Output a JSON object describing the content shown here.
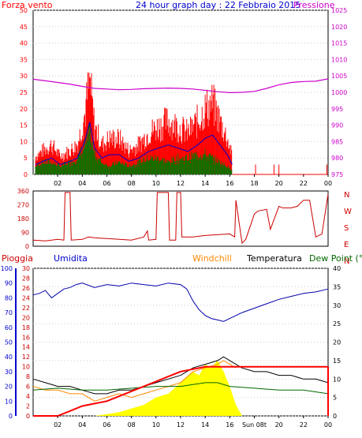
{
  "title": "24 hour graph day : 22 Febbraio 2015",
  "hour_ticks": [
    "02",
    "04",
    "06",
    "08",
    "10",
    "12",
    "14",
    "16",
    "18",
    "20",
    "22",
    "00"
  ],
  "colors": {
    "wind": "#ff0000",
    "gust_line": "#0000cc",
    "avg_wind": "#007700",
    "pressure": "#cc00cc",
    "direction": "#cc0000",
    "rain": "#ff0000",
    "humidity": "#0000aa",
    "windchill": "#ff8800",
    "temperature": "#000000",
    "dewpoint": "#006600",
    "solar": "#ffff00",
    "axis_left_wind": "#ff0000",
    "axis_humidity": "#0000cc",
    "axis_rain": "#cc0000",
    "frame": "#000000"
  },
  "chart_data": [
    {
      "type": "line",
      "name": "wind-pressure",
      "left_axis_label": "Forza vento",
      "right_axis_label": "Pressione",
      "left_ticks": [
        0,
        5,
        10,
        15,
        20,
        25,
        30,
        35,
        40,
        45,
        50
      ],
      "right_ticks": [
        975,
        980,
        985,
        990,
        995,
        1000,
        1005,
        1010,
        1015,
        1020,
        1025
      ],
      "ylim_left": [
        0,
        50
      ],
      "ylim_right": [
        975,
        1025
      ],
      "xlim_hours": [
        0,
        24
      ],
      "series": [
        {
          "key": "pressure",
          "x": [
            0,
            1,
            2,
            3,
            4,
            5,
            6,
            7,
            8,
            9,
            10,
            11,
            12,
            13,
            14,
            15,
            16,
            17,
            18,
            19,
            20,
            21,
            22,
            23,
            24
          ],
          "y": [
            1004,
            1003.5,
            1003,
            1002.5,
            1001.8,
            1001.2,
            1001,
            1000.8,
            1000.9,
            1001.1,
            1001.2,
            1001.3,
            1001.2,
            1001,
            1000.6,
            1000.2,
            999.9,
            1000,
            1000.3,
            1001.2,
            1002.3,
            1003,
            1003.3,
            1003.4,
            1004.1
          ]
        },
        {
          "key": "gust_line",
          "x": [
            0.2,
            0.8,
            1.5,
            2.2,
            3,
            3.6,
            4.2,
            4.6,
            5,
            5.6,
            6.2,
            7,
            7.8,
            8.6,
            9.4,
            10.2,
            11,
            11.8,
            12.6,
            13.4,
            14,
            14.6,
            15.2,
            15.8,
            16.2
          ],
          "y": [
            3,
            4,
            5,
            3,
            4,
            5,
            10,
            16,
            8,
            5,
            6,
            6,
            4,
            5,
            7,
            8,
            9,
            8,
            7,
            9,
            11,
            12,
            9,
            6,
            3
          ]
        },
        {
          "key": "avg_wind",
          "x": [
            0.2,
            0.8,
            1.5,
            2.2,
            3,
            3.6,
            4.2,
            4.6,
            5,
            5.6,
            6.2,
            7,
            7.8,
            8.6,
            9.4,
            10.2,
            11,
            11.8,
            12.6,
            13.4,
            14,
            14.6,
            15.2,
            15.8,
            16.2
          ],
          "y": [
            2,
            3,
            3,
            2,
            3,
            4,
            7,
            10,
            5,
            3,
            2,
            3,
            2,
            3,
            4,
            4,
            3,
            4,
            4,
            5,
            5,
            4,
            3,
            2,
            1
          ]
        }
      ]
    },
    {
      "type": "line",
      "name": "wind-direction",
      "left_ticks": [
        0,
        90,
        180,
        270,
        360
      ],
      "right_labels": [
        "N",
        "W",
        "S",
        "E",
        "N"
      ],
      "ylim": [
        0,
        360
      ],
      "xlim_hours": [
        0,
        24
      ],
      "series": [
        {
          "key": "direction",
          "x": [
            0,
            1,
            2,
            2.5,
            2.6,
            3,
            3.1,
            4,
            4.5,
            5,
            6,
            7,
            8,
            9,
            9.3,
            9.4,
            10,
            10.1,
            11,
            11.1,
            11.6,
            11.7,
            12,
            12.1,
            13,
            14,
            15,
            16,
            16.4,
            16.5,
            17,
            17.3,
            18,
            18.3,
            19,
            19.3,
            20,
            20.3,
            21,
            21.5,
            22,
            22.5,
            23,
            23.5,
            24
          ],
          "y": [
            40,
            35,
            45,
            40,
            350,
            350,
            40,
            45,
            60,
            55,
            50,
            45,
            40,
            60,
            100,
            40,
            45,
            350,
            350,
            40,
            40,
            350,
            350,
            60,
            60,
            70,
            75,
            80,
            60,
            300,
            20,
            45,
            210,
            230,
            240,
            110,
            260,
            250,
            250,
            260,
            300,
            300,
            60,
            80,
            340
          ]
        }
      ]
    },
    {
      "type": "line",
      "name": "temperature-humidity-rain",
      "rain_axis_label": "Pioggia",
      "humidity_axis_label": "Umidita",
      "windchill_label": "Windchill",
      "temperature_label": "Temperatura",
      "dewpoint_label": "Dew Point (°C",
      "humidity_ticks": [
        0,
        10,
        20,
        30,
        40,
        50,
        60,
        70,
        80,
        90,
        100
      ],
      "rain_ticks": [
        0,
        2,
        4,
        6,
        8,
        10,
        12,
        14,
        16,
        18,
        20,
        22,
        24,
        26,
        28,
        30
      ],
      "temp_ticks": [
        0,
        5,
        10,
        15,
        20,
        25,
        30,
        35,
        40
      ],
      "ylim_humidity": [
        0,
        100
      ],
      "ylim_rain": [
        0,
        30
      ],
      "ylim_temp": [
        0,
        40
      ],
      "xlim_hours": [
        0,
        24
      ],
      "x_ticks": [
        "02",
        "04",
        "06",
        "08",
        "10",
        "12",
        "14",
        "16",
        "Sun 08t",
        "20",
        "22",
        "00"
      ],
      "series": [
        {
          "key": "humidity",
          "x": [
            0,
            0.5,
            1,
            1.5,
            2,
            2.5,
            3,
            3.5,
            4,
            5,
            6,
            7,
            8,
            9,
            10,
            11,
            12,
            12.5,
            13,
            13.5,
            14,
            14.5,
            15,
            15.5,
            16,
            17,
            18,
            19,
            20,
            21,
            22,
            23,
            24
          ],
          "y": [
            82,
            83,
            85,
            80,
            83,
            86,
            87,
            89,
            90,
            87,
            89,
            88,
            90,
            89,
            88,
            90,
            89,
            86,
            78,
            72,
            68,
            66,
            65,
            64,
            66,
            70,
            73,
            76,
            79,
            81,
            83,
            84,
            86
          ]
        },
        {
          "key": "temperature",
          "x": [
            0,
            1,
            2,
            3,
            4,
            5,
            6,
            7,
            8,
            9,
            10,
            11,
            12,
            13,
            14,
            15,
            15.5,
            16,
            17,
            18,
            19,
            20,
            21,
            22,
            23,
            24
          ],
          "y": [
            10,
            9,
            8,
            8,
            7,
            6,
            6,
            7,
            7,
            8,
            9,
            10,
            11,
            13,
            14,
            15,
            16,
            15,
            13,
            12,
            12,
            11,
            11,
            10,
            10,
            9
          ]
        },
        {
          "key": "windchill",
          "x": [
            0,
            1,
            2,
            3,
            4,
            5,
            6,
            7,
            8,
            9,
            10,
            11,
            12,
            13,
            14,
            15,
            15.5,
            16,
            16.5
          ],
          "y": [
            8,
            7,
            7,
            6,
            6,
            4,
            5,
            6,
            5,
            6,
            7,
            8,
            9,
            12,
            13,
            14,
            15,
            14,
            13
          ]
        },
        {
          "key": "dewpoint",
          "x": [
            0,
            2,
            4,
            6,
            8,
            10,
            12,
            13,
            14,
            15,
            16,
            18,
            20,
            22,
            24
          ],
          "y": [
            7,
            7.5,
            7,
            7,
            7.5,
            8,
            8,
            8.5,
            9,
            9,
            8,
            7.5,
            7,
            7,
            6
          ]
        },
        {
          "key": "rain",
          "x": [
            0,
            2,
            3,
            4,
            5,
            6,
            7,
            8,
            9,
            10,
            11,
            12,
            13,
            14,
            15,
            16,
            17,
            24
          ],
          "y": [
            0,
            0,
            1,
            2,
            2.5,
            3,
            4,
            5,
            6,
            7,
            8,
            9,
            9.5,
            10,
            10,
            10,
            10,
            10
          ]
        },
        {
          "key": "solar",
          "x": [
            5,
            6,
            7,
            8,
            9,
            10,
            11,
            12,
            13,
            13.5,
            14,
            14.5,
            15,
            15.5,
            16,
            16.5,
            17
          ],
          "y": [
            0,
            0.5,
            1,
            2,
            3,
            5,
            6,
            9,
            12,
            11,
            14,
            13,
            15,
            12,
            8,
            3,
            0
          ]
        }
      ]
    }
  ]
}
